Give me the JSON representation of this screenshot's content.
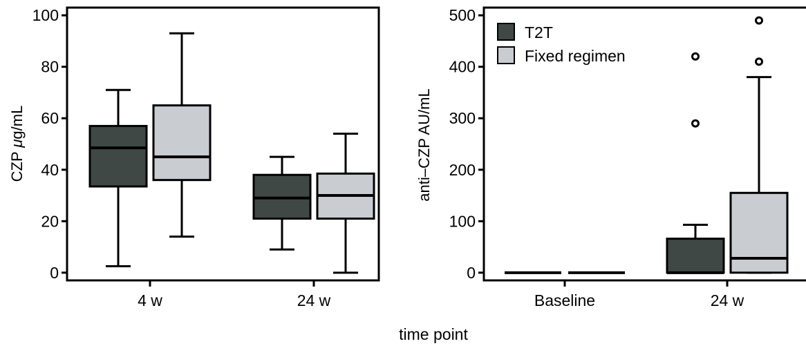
{
  "figure": {
    "xlabel": "time point"
  },
  "legend": {
    "position": "top-left of right panel",
    "items": [
      {
        "name": "T2T",
        "color": "#404846"
      },
      {
        "name": "Fixed regimen",
        "color": "#c9ccd1"
      }
    ]
  },
  "chart_data": [
    {
      "type": "box",
      "ylabel": "CZP μg/mL",
      "ylabel_parts": [
        "CZP ",
        "μ",
        "g/mL"
      ],
      "ylim": [
        -3,
        103
      ],
      "yticks": [
        0,
        20,
        40,
        60,
        80,
        100
      ],
      "categories": [
        "4 w",
        "24 w"
      ],
      "series": [
        {
          "name": "T2T",
          "color": "#404846",
          "boxes": [
            {
              "category": "4 w",
              "whisker_low": 2.5,
              "q1": 33.5,
              "median": 48.5,
              "q3": 57,
              "whisker_high": 71,
              "outliers": []
            },
            {
              "category": "24 w",
              "whisker_low": 9,
              "q1": 21,
              "median": 29,
              "q3": 38,
              "whisker_high": 45,
              "outliers": []
            }
          ]
        },
        {
          "name": "Fixed regimen",
          "color": "#c9ccd1",
          "boxes": [
            {
              "category": "4 w",
              "whisker_low": 14,
              "q1": 36,
              "median": 45,
              "q3": 65,
              "whisker_high": 93,
              "outliers": []
            },
            {
              "category": "24 w",
              "whisker_low": 0,
              "q1": 21,
              "median": 30,
              "q3": 38.5,
              "whisker_high": 54,
              "outliers": []
            }
          ]
        }
      ]
    },
    {
      "type": "box",
      "ylabel": "anti–CZP AU/mL",
      "ylim": [
        -15,
        515
      ],
      "yticks": [
        0,
        100,
        200,
        300,
        400,
        500
      ],
      "categories": [
        "Baseline",
        "24 w"
      ],
      "series": [
        {
          "name": "T2T",
          "color": "#404846",
          "boxes": [
            {
              "category": "Baseline",
              "whisker_low": 0,
              "q1": 0,
              "median": 0,
              "q3": 0,
              "whisker_high": 0,
              "outliers": []
            },
            {
              "category": "24 w",
              "whisker_low": 0,
              "q1": 0,
              "median": 0,
              "q3": 66,
              "whisker_high": 93,
              "outliers": [
                290,
                420
              ]
            }
          ]
        },
        {
          "name": "Fixed regimen",
          "color": "#c9ccd1",
          "boxes": [
            {
              "category": "Baseline",
              "whisker_low": 0,
              "q1": 0,
              "median": 0,
              "q3": 0,
              "whisker_high": 0,
              "outliers": []
            },
            {
              "category": "24 w",
              "whisker_low": 0,
              "q1": 0,
              "median": 28,
              "q3": 155,
              "whisker_high": 380,
              "outliers": [
                410,
                490
              ]
            }
          ]
        }
      ]
    }
  ]
}
